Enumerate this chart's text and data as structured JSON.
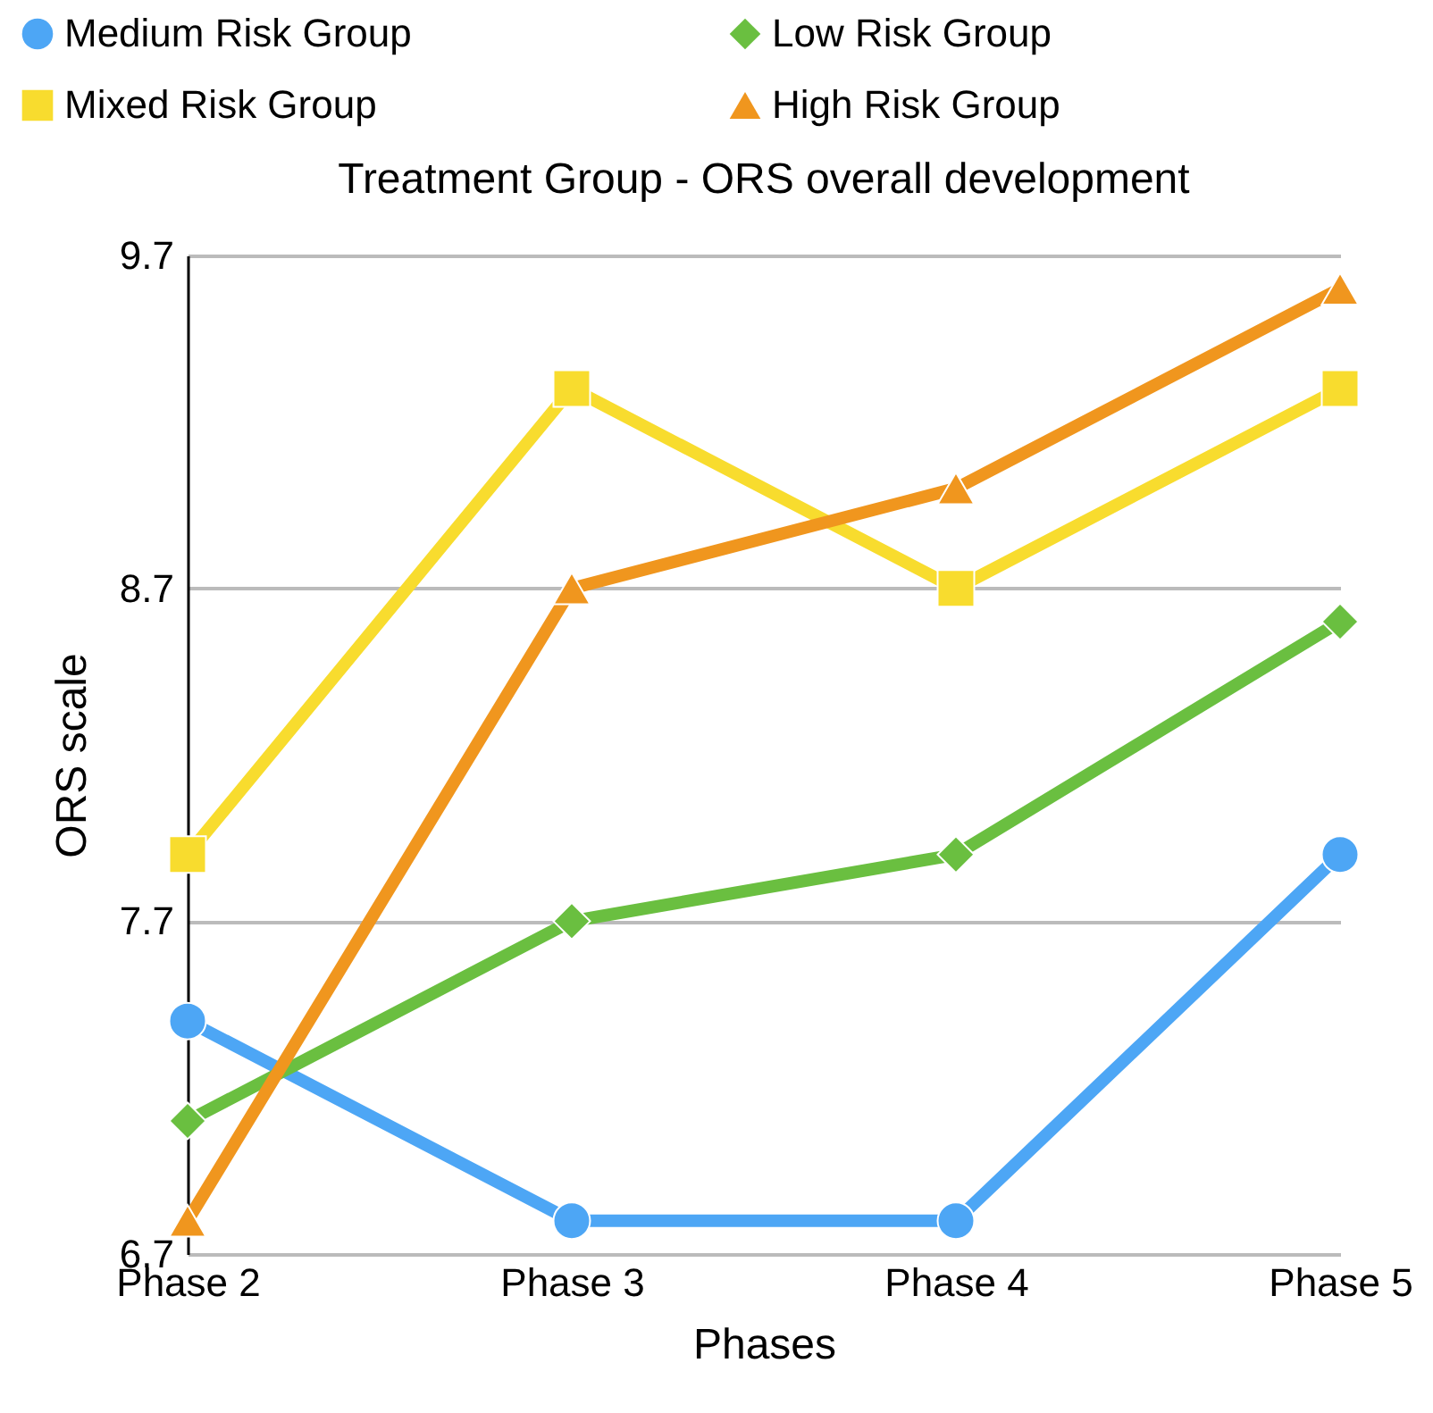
{
  "chart_data": {
    "type": "line",
    "title": "Treatment Group - ORS overall development",
    "xlabel": "Phases",
    "ylabel": "ORS scale",
    "categories": [
      "Phase 2",
      "Phase 3",
      "Phase 4",
      "Phase 5"
    ],
    "series": [
      {
        "name": "Medium Risk Group",
        "color": "#4da6f5",
        "marker": "circle",
        "values": [
          7.4,
          6.8,
          6.8,
          7.9
        ]
      },
      {
        "name": "Low Risk Group",
        "color": "#6abf40",
        "marker": "diamond",
        "values": [
          7.1,
          7.7,
          7.9,
          8.6
        ]
      },
      {
        "name": "Mixed Risk Group",
        "color": "#f8dc2e",
        "marker": "square",
        "values": [
          7.9,
          9.3,
          8.7,
          9.3
        ]
      },
      {
        "name": "High Risk Group",
        "color": "#f0961e",
        "marker": "triangle",
        "values": [
          6.8,
          8.7,
          9.0,
          9.6
        ]
      }
    ],
    "ylim": [
      6.7,
      9.7
    ],
    "yticks": [
      6.7,
      7.7,
      8.7,
      9.7
    ],
    "grid": "y",
    "legend": "top",
    "line_style": "solid"
  }
}
